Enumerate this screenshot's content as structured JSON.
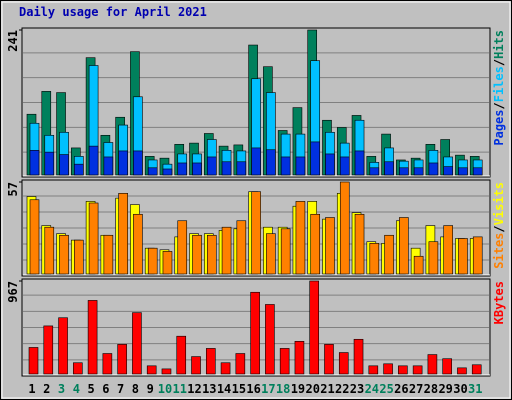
{
  "chart_data": [
    {
      "type": "bar",
      "title": "Daily usage for April 2021",
      "ylim": [
        0,
        241
      ],
      "yticks": [
        241
      ],
      "legend_separator": "/",
      "series": [
        {
          "name": "Hits",
          "color": "#00805c",
          "values": [
            101,
            139,
            137,
            45,
            195,
            66,
            96,
            205,
            31,
            28,
            51,
            53,
            69,
            48,
            50,
            216,
            180,
            74,
            112,
            241,
            91,
            79,
            99,
            31,
            68,
            25,
            28,
            51,
            59,
            33,
            31
          ]
        },
        {
          "name": "Files",
          "color": "#00c0ff",
          "values": [
            86,
            66,
            71,
            31,
            182,
            54,
            83,
            130,
            25,
            18,
            35,
            35,
            59,
            41,
            40,
            160,
            137,
            68,
            68,
            190,
            71,
            53,
            91,
            21,
            45,
            23,
            25,
            41,
            30,
            25,
            25
          ]
        },
        {
          "name": "Pages",
          "color": "#0030e0",
          "values": [
            41,
            38,
            34,
            18,
            48,
            30,
            40,
            40,
            12,
            10,
            20,
            20,
            30,
            22,
            22,
            45,
            42,
            30,
            30,
            55,
            35,
            30,
            40,
            12,
            22,
            12,
            12,
            20,
            14,
            12,
            12
          ]
        }
      ]
    },
    {
      "type": "bar",
      "ylim": [
        0,
        57
      ],
      "yticks": [
        57
      ],
      "legend_separator": "/",
      "series": [
        {
          "name": "Visits",
          "color": "#ffff00",
          "values": [
            48,
            30,
            25,
            21,
            45,
            24,
            47,
            43,
            16,
            15,
            23,
            25,
            25,
            27,
            28,
            51,
            29,
            29,
            42,
            45,
            34,
            50,
            38,
            20,
            19,
            33,
            16,
            30,
            23,
            22,
            22
          ]
        },
        {
          "name": "Sites",
          "color": "#ff8000",
          "values": [
            46,
            29,
            24,
            21,
            44,
            24,
            50,
            37,
            16,
            14,
            33,
            24,
            24,
            29,
            33,
            51,
            25,
            28,
            45,
            37,
            35,
            57,
            37,
            19,
            24,
            35,
            11,
            20,
            30,
            22,
            23
          ]
        }
      ]
    },
    {
      "type": "bar",
      "ylim": [
        0,
        967
      ],
      "yticks": [
        967
      ],
      "series": [
        {
          "name": "KBytes",
          "color": "#ff0000",
          "values": [
            276,
            500,
            585,
            117,
            765,
            213,
            308,
            638,
            85,
            53,
            393,
            181,
            266,
            117,
            213,
            850,
            723,
            266,
            340,
            967,
            308,
            223,
            361,
            85,
            106,
            85,
            85,
            202,
            159,
            64,
            96
          ]
        }
      ],
      "categories": [
        "1",
        "2",
        "3",
        "4",
        "5",
        "6",
        "7",
        "8",
        "9",
        "10",
        "11",
        "12",
        "13",
        "14",
        "15",
        "16",
        "17",
        "18",
        "19",
        "20",
        "21",
        "22",
        "23",
        "24",
        "25",
        "26",
        "27",
        "28",
        "29",
        "30",
        "31"
      ],
      "category_colors": [
        "#000",
        "#000",
        "#00805c",
        "#00805c",
        "#000",
        "#000",
        "#000",
        "#000",
        "#000",
        "#00805c",
        "#00805c",
        "#000",
        "#000",
        "#000",
        "#000",
        "#000",
        "#00805c",
        "#00805c",
        "#000",
        "#000",
        "#000",
        "#000",
        "#000",
        "#00805c",
        "#00805c",
        "#000",
        "#000",
        "#000",
        "#000",
        "#000",
        "#00805c"
      ]
    }
  ]
}
